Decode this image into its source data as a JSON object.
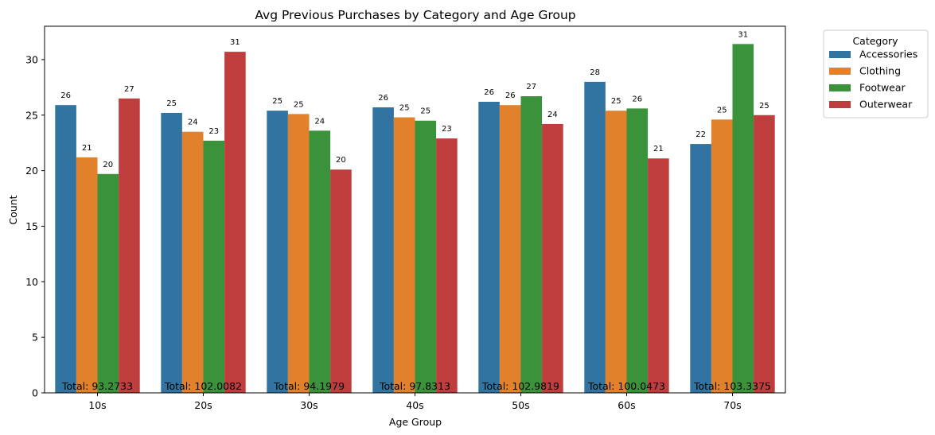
{
  "chart_data": {
    "type": "bar",
    "title": "Avg Previous Purchases by Category and Age Group",
    "xlabel": "Age Group",
    "ylabel": "Count",
    "ylim": [
      0,
      33
    ],
    "yticks": [
      0,
      5,
      10,
      15,
      20,
      25,
      30
    ],
    "categories": [
      "10s",
      "20s",
      "30s",
      "40s",
      "50s",
      "60s",
      "70s"
    ],
    "legend": {
      "title": "Category",
      "placement": "outside-top-right"
    },
    "series": [
      {
        "name": "Accessories",
        "color": "#3274a1",
        "values": [
          25.9,
          25.2,
          25.4,
          25.7,
          26.2,
          28.0,
          22.4
        ],
        "labels": [
          "26",
          "25",
          "25",
          "26",
          "26",
          "28",
          "22"
        ]
      },
      {
        "name": "Clothing",
        "color": "#e1812c",
        "values": [
          21.2,
          23.5,
          25.1,
          24.8,
          25.9,
          25.4,
          24.6
        ],
        "labels": [
          "21",
          "24",
          "25",
          "25",
          "26",
          "25",
          "25"
        ]
      },
      {
        "name": "Footwear",
        "color": "#3a923a",
        "values": [
          19.7,
          22.7,
          23.6,
          24.5,
          26.7,
          25.6,
          31.4
        ],
        "labels": [
          "20",
          "23",
          "24",
          "25",
          "27",
          "26",
          "31"
        ]
      },
      {
        "name": "Outerwear",
        "color": "#c03d3e",
        "values": [
          26.5,
          30.7,
          20.1,
          22.9,
          24.2,
          21.1,
          25.0
        ],
        "labels": [
          "27",
          "31",
          "20",
          "23",
          "24",
          "21",
          "25"
        ]
      }
    ],
    "totals": [
      "Total: 93.2733",
      "Total: 102.0082",
      "Total: 94.1979",
      "Total: 97.8313",
      "Total: 102.9819",
      "Total: 100.0473",
      "Total: 103.3375"
    ]
  }
}
